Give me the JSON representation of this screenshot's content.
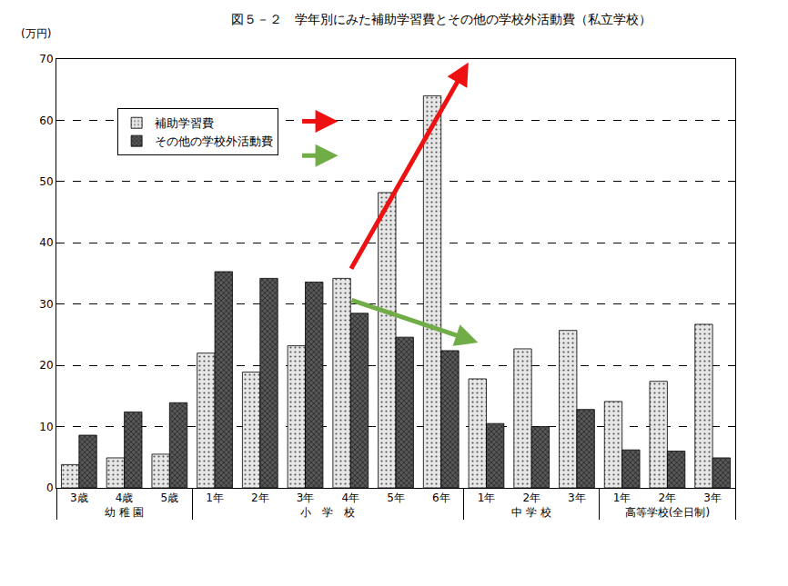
{
  "chart_data": {
    "type": "bar",
    "title": "図５－２　学年別にみた補助学習費とその他の学校外活動費（私立学校）",
    "y_label": "(万円)",
    "categories": [
      "3歳",
      "4歳",
      "5歳",
      "1年",
      "2年",
      "3年",
      "4年",
      "5年",
      "6年",
      "1年",
      "2年",
      "3年",
      "1年",
      "2年",
      "3年"
    ],
    "category_groups": [
      "幼 稚 園",
      "幼 稚 園",
      "幼 稚 園",
      "小　学　校",
      "小　学　校",
      "小　学　校",
      "小　学　校",
      "小　学　校",
      "小　学　校",
      "中 学 校",
      "中 学 校",
      "中 学 校",
      "高等学校(全日制)",
      "高等学校(全日制)",
      "高等学校(全日制)"
    ],
    "series": [
      {
        "name": "補助学習費",
        "color": "#e6e6e6",
        "marker": "dots",
        "values": [
          3.8,
          4.9,
          5.5,
          22.0,
          18.9,
          23.2,
          34.2,
          48.2,
          64.0,
          17.8,
          22.7,
          25.7,
          14.1,
          17.4,
          26.7
        ]
      },
      {
        "name": "その他の学校外活動費",
        "color": "#595959",
        "marker": "crosshatch",
        "values": [
          8.6,
          12.4,
          13.9,
          35.3,
          34.2,
          33.6,
          28.5,
          24.6,
          22.4,
          10.5,
          10.0,
          12.8,
          6.2,
          6.0,
          4.9
        ]
      }
    ],
    "ylim": [
      0,
      70
    ],
    "yticks": [
      0,
      10,
      20,
      30,
      40,
      50,
      60,
      70
    ],
    "grid": true,
    "legend": "upper left"
  }
}
